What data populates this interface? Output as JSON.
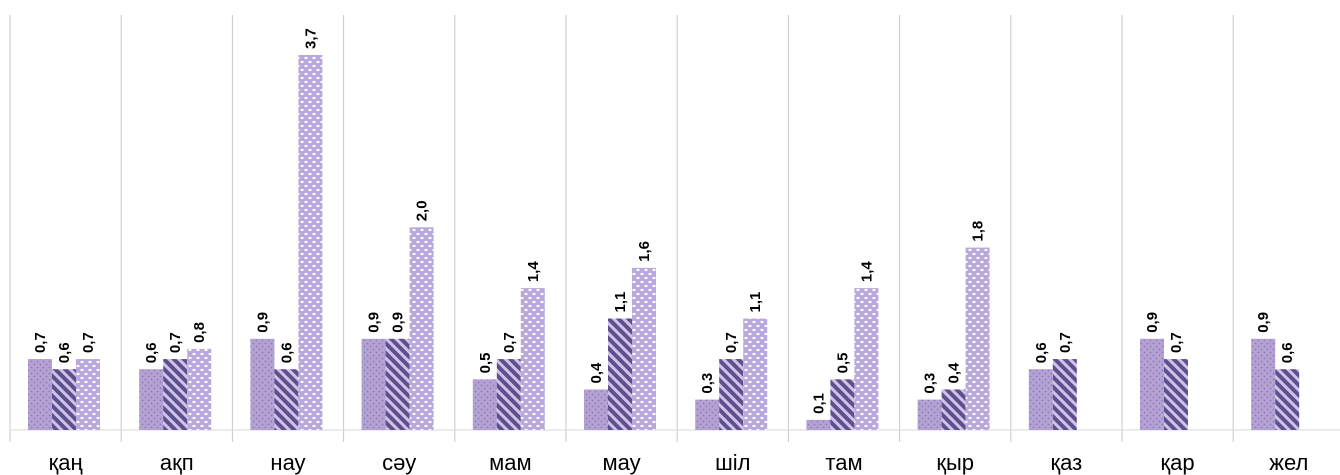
{
  "chart_data": {
    "type": "bar",
    "categories": [
      "қаң",
      "ақп",
      "нау",
      "сәу",
      "мам",
      "мау",
      "шіл",
      "там",
      "қыр",
      "қаз",
      "қар",
      "жел"
    ],
    "series": [
      {
        "values": [
          0.7,
          0.6,
          0.9,
          0.9,
          0.5,
          0.4,
          0.3,
          0.1,
          0.3,
          0.6,
          0.9,
          0.9
        ],
        "labels": [
          "0,7",
          "0,6",
          "0,9",
          "0,9",
          "0,5",
          "0,4",
          "0,3",
          "0,1",
          "0,3",
          "0,6",
          "0,9",
          "0,9"
        ],
        "pattern": "dots",
        "color": "#b3a2d3"
      },
      {
        "values": [
          0.6,
          0.7,
          0.6,
          0.9,
          0.7,
          1.1,
          0.7,
          0.5,
          0.4,
          0.7,
          0.7,
          0.6
        ],
        "labels": [
          "0,6",
          "0,7",
          "0,6",
          "0,9",
          "0,7",
          "1,1",
          "0,7",
          "0,5",
          "0,4",
          "0,7",
          "0,7",
          "0,6"
        ],
        "pattern": "diagonal-stripes",
        "color": "#5e4f8f"
      },
      {
        "values": [
          0.7,
          0.8,
          3.7,
          2.0,
          1.4,
          1.6,
          1.1,
          1.4,
          1.8,
          null,
          null,
          null
        ],
        "labels": [
          "0,7",
          "0,8",
          "3,7",
          "2,0",
          "1,4",
          "1,6",
          "1,1",
          "1,4",
          "1,8",
          null,
          null,
          null
        ],
        "pattern": "white-dots",
        "color": "#b9a8dc"
      }
    ],
    "ylim": [
      0,
      4.2
    ],
    "grid": "vertical separators between categories",
    "legend": "none"
  }
}
